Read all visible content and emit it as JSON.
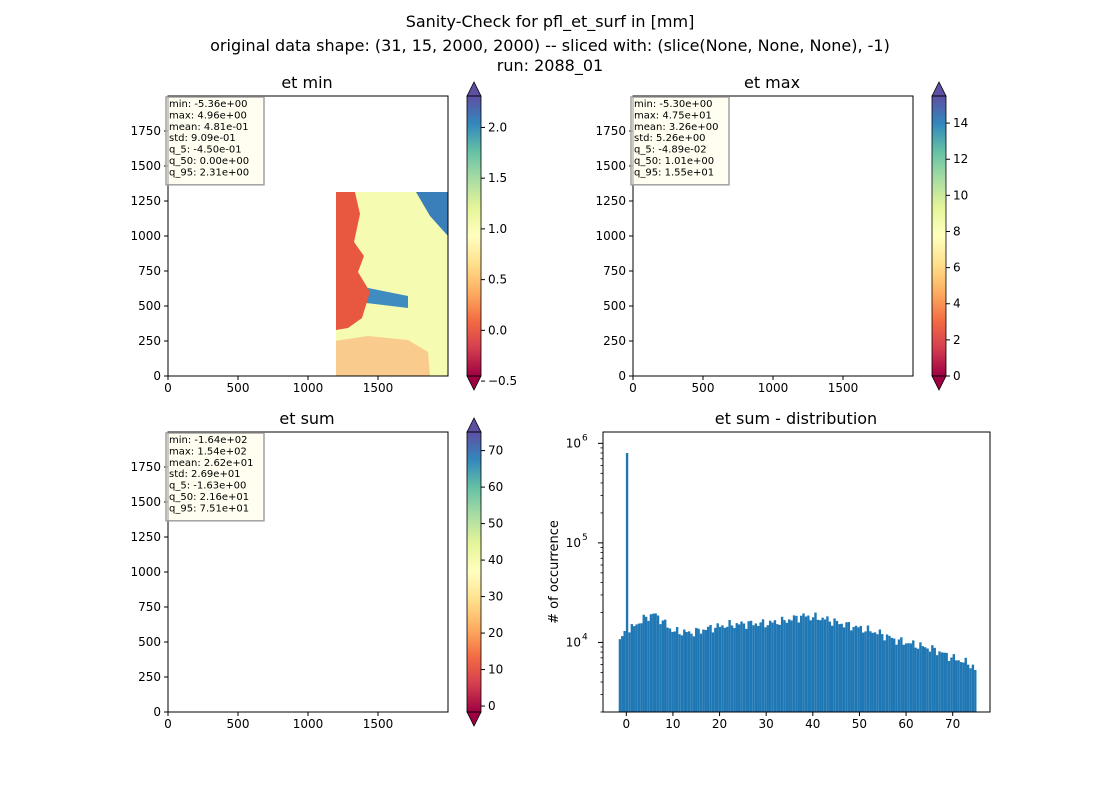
{
  "figure": {
    "title_lines": [
      "Sanity-Check for pfl_et_surf in [mm]",
      "original data shape: (31, 15, 2000, 2000) -- sliced with: (slice(None, None, None), -1)",
      "run: 2088_01"
    ]
  },
  "colors": {
    "sea_fill": "#f6fbb2",
    "hist_bar": "#1f77b4",
    "spectral_stops": [
      "#9e0142",
      "#d53e4f",
      "#f46d43",
      "#fdae61",
      "#fee08b",
      "#ffffbf",
      "#e6f598",
      "#abdda4",
      "#66c2a5",
      "#3288bd",
      "#5e4fa2"
    ]
  },
  "chart_data": [
    {
      "type": "heatmap",
      "title": "et min",
      "xticks": [
        0,
        500,
        1000,
        1500
      ],
      "yticks": [
        0,
        250,
        500,
        750,
        1000,
        1250,
        1500,
        1750
      ],
      "xlim": [
        0,
        2000
      ],
      "ylim": [
        0,
        2000
      ],
      "colorbar": {
        "ticks": [
          -0.5,
          0.0,
          0.5,
          1.0,
          1.5,
          2.0
        ],
        "tick_labels": [
          "−0.5",
          "0.0",
          "0.5",
          "1.0",
          "1.5",
          "2.0"
        ],
        "vmin": -0.45,
        "vmax": 2.31,
        "extend": "both"
      },
      "stats": [
        "min: -5.36e+00",
        "max: 4.96e+00",
        "mean: 4.81e-01",
        "std: 9.09e-01",
        "q_5: -4.50e-01",
        "q_50: 0.00e+00",
        "q_95: 2.31e+00"
      ]
    },
    {
      "type": "heatmap",
      "title": "et max",
      "xticks": [
        0,
        500,
        1000,
        1500
      ],
      "yticks": [
        0,
        250,
        500,
        750,
        1000,
        1250,
        1500,
        1750
      ],
      "xlim": [
        0,
        2000
      ],
      "ylim": [
        0,
        2000
      ],
      "colorbar": {
        "ticks": [
          0,
          2,
          4,
          6,
          8,
          10,
          12,
          14
        ],
        "tick_labels": [
          "0",
          "2",
          "4",
          "6",
          "8",
          "10",
          "12",
          "14"
        ],
        "vmin": 0,
        "vmax": 15.5,
        "extend": "both"
      },
      "stats": [
        "min: -5.30e+00",
        "max: 4.75e+01",
        "mean: 3.26e+00",
        "std: 5.26e+00",
        "q_5: -4.89e-02",
        "q_50: 1.01e+00",
        "q_95: 1.55e+01"
      ]
    },
    {
      "type": "heatmap",
      "title": "et sum",
      "xticks": [
        0,
        500,
        1000,
        1500
      ],
      "yticks": [
        0,
        250,
        500,
        750,
        1000,
        1250,
        1500,
        1750
      ],
      "xlim": [
        0,
        2000
      ],
      "ylim": [
        0,
        2000
      ],
      "colorbar": {
        "ticks": [
          0,
          10,
          20,
          30,
          40,
          50,
          60,
          70
        ],
        "tick_labels": [
          "0",
          "10",
          "20",
          "30",
          "40",
          "50",
          "60",
          "70"
        ],
        "vmin": -1.63,
        "vmax": 75.1,
        "extend": "both"
      },
      "stats": [
        "min: -1.64e+02",
        "max: 1.54e+02",
        "mean: 2.62e+01",
        "std: 2.69e+01",
        "q_5: -1.63e+00",
        "q_50: 2.16e+01",
        "q_95: 7.51e+01"
      ]
    },
    {
      "type": "bar",
      "title": "et sum - distribution",
      "ylabel": "# of occurrence",
      "yscale": "log",
      "ylim": [
        2000,
        1300000
      ],
      "xlim": [
        -5,
        78
      ],
      "xticks": [
        0,
        10,
        20,
        30,
        40,
        50,
        60,
        70
      ],
      "yticks": [
        {
          "value": 10000,
          "label": "10",
          "exp": "4"
        },
        {
          "value": 100000,
          "label": "10",
          "exp": "5"
        },
        {
          "value": 1000000,
          "label": "10",
          "exp": "6"
        }
      ],
      "bin_range": [
        -1.63,
        75.1
      ],
      "bin_count": 150,
      "spike": {
        "x": 0,
        "value": 800000
      },
      "profile_x": [
        -1.6,
        0,
        2,
        4,
        6,
        8,
        10,
        14,
        18,
        22,
        26,
        30,
        34,
        38,
        42,
        46,
        50,
        54,
        58,
        62,
        66,
        70,
        74,
        75.1
      ],
      "profile_counts": [
        10500,
        12500,
        15000,
        17500,
        19500,
        16000,
        13000,
        12500,
        14000,
        15000,
        15500,
        15500,
        16500,
        18500,
        17500,
        15500,
        14000,
        12500,
        10500,
        9500,
        8500,
        7000,
        6000,
        5000
      ]
    }
  ]
}
